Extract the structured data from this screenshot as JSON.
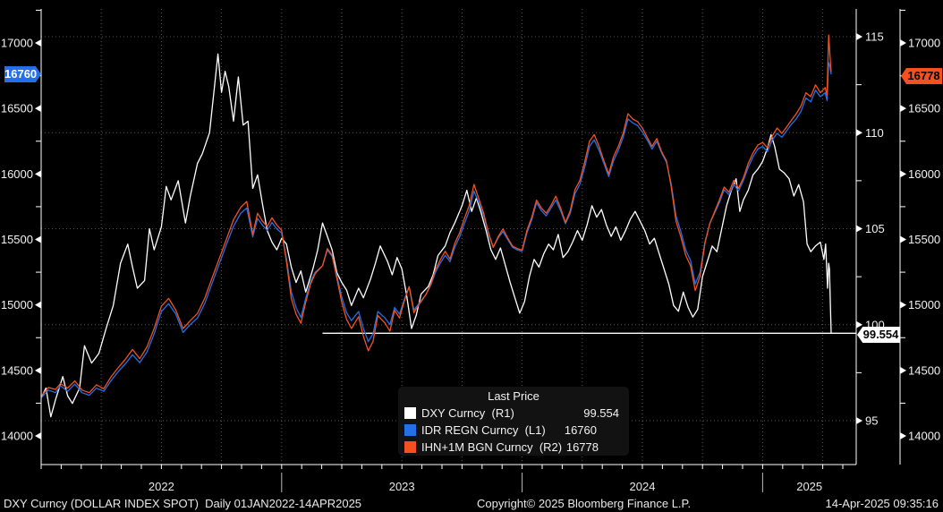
{
  "chart_data": {
    "type": "line",
    "x_axis": {
      "start_year": 2022,
      "end_year_fraction": 2025.39,
      "year_labels": [
        "2022",
        "2023",
        "2024",
        "2025"
      ],
      "minor_tick": "monthly",
      "gridlines": "quarterly-dotted"
    },
    "axes": {
      "left_l1": {
        "min": 14000,
        "max": 17000,
        "step": 500,
        "minor_step": 250
      },
      "right_r1": {
        "min": 95,
        "max": 115,
        "step": 5,
        "minor_step": 2.5
      },
      "right_r2": {
        "min": 14000,
        "max": 17000,
        "step": 500,
        "minor_step": 250
      }
    },
    "colors": {
      "dxy": "#FFFFFF",
      "idr": "#2470E8",
      "ihn": "#F4511E",
      "grid": "#5a5a5a",
      "axis": "#FFFFFF",
      "label": "#F2F2F2"
    },
    "last_price_line": {
      "value": 99.554,
      "from_x": 2023.17
    },
    "badges": {
      "left_blue": "16760",
      "right_orange": "16778",
      "right_white": "99.554"
    },
    "legend": {
      "title": "Last Price",
      "rows": [
        {
          "label": "DXY Curncy  (R1)",
          "value": "99.554",
          "color": "#FFFFFF"
        },
        {
          "label": "IDR REGN Curncy  (L1)",
          "value": "16760",
          "color": "#2470E8"
        },
        {
          "label": "IHN+1M BGN Curncy  (R2)",
          "value": "16778",
          "color": "#F4511E"
        }
      ]
    },
    "series": [
      {
        "name": "DXY Curncy",
        "axis": "R1",
        "color": "#FFFFFF",
        "last": 99.554,
        "x": [
          2022.0,
          2022.02,
          2022.04,
          2022.06,
          2022.09,
          2022.11,
          2022.13,
          2022.16,
          2022.18,
          2022.21,
          2022.24,
          2022.27,
          2022.3,
          2022.33,
          2022.36,
          2022.38,
          2022.4,
          2022.43,
          2022.45,
          2022.47,
          2022.5,
          2022.52,
          2022.54,
          2022.57,
          2022.6,
          2022.62,
          2022.65,
          2022.67,
          2022.7,
          2022.72,
          2022.735,
          2022.75,
          2022.765,
          2022.78,
          2022.8,
          2022.82,
          2022.84,
          2022.86,
          2022.88,
          2022.9,
          2022.92,
          2022.94,
          2022.96,
          2022.98,
          2023.0,
          2023.02,
          2023.04,
          2023.06,
          2023.08,
          2023.1,
          2023.13,
          2023.15,
          2023.17,
          2023.19,
          2023.21,
          2023.23,
          2023.25,
          2023.27,
          2023.29,
          2023.32,
          2023.34,
          2023.37,
          2023.39,
          2023.41,
          2023.44,
          2023.46,
          2023.48,
          2023.5,
          2023.52,
          2023.54,
          2023.56,
          2023.58,
          2023.61,
          2023.63,
          2023.65,
          2023.68,
          2023.7,
          2023.72,
          2023.75,
          2023.77,
          2023.79,
          2023.81,
          2023.83,
          2023.85,
          2023.87,
          2023.89,
          2023.91,
          2023.93,
          2023.95,
          2023.97,
          2023.99,
          2024.01,
          2024.03,
          2024.05,
          2024.07,
          2024.09,
          2024.11,
          2024.13,
          2024.15,
          2024.17,
          2024.19,
          2024.21,
          2024.23,
          2024.25,
          2024.27,
          2024.29,
          2024.31,
          2024.33,
          2024.35,
          2024.37,
          2024.39,
          2024.41,
          2024.43,
          2024.45,
          2024.47,
          2024.49,
          2024.51,
          2024.53,
          2024.55,
          2024.57,
          2024.59,
          2024.61,
          2024.63,
          2024.65,
          2024.67,
          2024.69,
          2024.71,
          2024.73,
          2024.75,
          2024.77,
          2024.79,
          2024.81,
          2024.83,
          2024.85,
          2024.87,
          2024.89,
          2024.905,
          2024.92,
          2024.94,
          2024.96,
          2024.98,
          2025.0,
          2025.02,
          2025.035,
          2025.05,
          2025.07,
          2025.09,
          2025.11,
          2025.13,
          2025.15,
          2025.17,
          2025.185,
          2025.2,
          2025.22,
          2025.24,
          2025.255,
          2025.262,
          2025.27,
          2025.2745,
          2025.278,
          2025.282,
          2025.285
        ],
        "values": [
          96.2,
          96.7,
          95.2,
          96.1,
          97.3,
          96.3,
          95.9,
          96.7,
          98.9,
          98.0,
          98.5,
          99.8,
          101.0,
          103.2,
          104.2,
          103.0,
          101.9,
          102.3,
          105.0,
          103.9,
          105.1,
          107.2,
          106.5,
          107.5,
          105.3,
          106.7,
          108.4,
          108.9,
          110.0,
          112.3,
          114.1,
          112.1,
          113.2,
          112.4,
          110.6,
          112.9,
          110.4,
          110.6,
          107.1,
          107.8,
          106.3,
          104.9,
          104.3,
          103.9,
          104.5,
          104.2,
          103.0,
          102.2,
          102.8,
          101.7,
          102.9,
          103.9,
          105.3,
          104.6,
          103.9,
          102.7,
          102.2,
          101.8,
          101.0,
          101.9,
          101.4,
          102.4,
          103.2,
          104.1,
          103.3,
          102.6,
          103.5,
          102.9,
          101.5,
          99.8,
          100.5,
          101.6,
          102.0,
          102.6,
          103.6,
          104.1,
          104.8,
          105.3,
          106.2,
          107.0,
          105.9,
          106.6,
          105.8,
          104.9,
          103.9,
          103.4,
          104.0,
          103.1,
          102.2,
          101.4,
          100.6,
          101.2,
          102.5,
          103.4,
          103.0,
          103.7,
          104.2,
          103.9,
          104.7,
          103.5,
          103.8,
          104.3,
          104.9,
          104.4,
          105.2,
          106.2,
          105.6,
          106.0,
          105.2,
          104.6,
          105.1,
          104.4,
          104.9,
          105.5,
          105.9,
          105.4,
          104.9,
          104.2,
          104.5,
          103.7,
          102.9,
          102.1,
          101.0,
          100.7,
          101.7,
          100.9,
          100.4,
          100.8,
          102.5,
          103.3,
          104.1,
          103.8,
          105.0,
          106.2,
          107.0,
          107.6,
          105.9,
          106.5,
          107.0,
          107.8,
          108.1,
          108.5,
          109.2,
          109.9,
          109.3,
          108.1,
          107.9,
          107.6,
          106.7,
          107.3,
          106.4,
          104.2,
          103.8,
          104.1,
          104.3,
          103.4,
          104.2,
          101.9,
          103.2,
          102.9,
          100.9,
          99.554
        ]
      },
      {
        "name": "IDR REGN Curncy",
        "axis": "L1",
        "color": "#2470E8",
        "last": 16760,
        "x": [
          2022.0,
          2022.03,
          2022.06,
          2022.08,
          2022.11,
          2022.14,
          2022.17,
          2022.2,
          2022.23,
          2022.26,
          2022.29,
          2022.32,
          2022.35,
          2022.38,
          2022.41,
          2022.44,
          2022.47,
          2022.5,
          2022.53,
          2022.56,
          2022.59,
          2022.62,
          2022.65,
          2022.68,
          2022.71,
          2022.74,
          2022.77,
          2022.8,
          2022.83,
          2022.855,
          2022.88,
          2022.9,
          2022.92,
          2022.94,
          2022.96,
          2022.98,
          2023.0,
          2023.02,
          2023.04,
          2023.06,
          2023.08,
          2023.1,
          2023.12,
          2023.14,
          2023.17,
          2023.19,
          2023.21,
          2023.23,
          2023.25,
          2023.27,
          2023.29,
          2023.32,
          2023.34,
          2023.36,
          2023.38,
          2023.4,
          2023.43,
          2023.45,
          2023.47,
          2023.49,
          2023.51,
          2023.53,
          2023.55,
          2023.57,
          2023.6,
          2023.62,
          2023.64,
          2023.66,
          2023.68,
          2023.7,
          2023.72,
          2023.74,
          2023.76,
          2023.78,
          2023.8,
          2023.82,
          2023.84,
          2023.86,
          2023.88,
          2023.9,
          2023.92,
          2023.94,
          2023.96,
          2023.98,
          2024.0,
          2024.02,
          2024.04,
          2024.06,
          2024.08,
          2024.1,
          2024.12,
          2024.14,
          2024.16,
          2024.18,
          2024.2,
          2024.22,
          2024.24,
          2024.26,
          2024.28,
          2024.3,
          2024.32,
          2024.34,
          2024.36,
          2024.38,
          2024.4,
          2024.42,
          2024.44,
          2024.46,
          2024.48,
          2024.5,
          2024.52,
          2024.54,
          2024.56,
          2024.58,
          2024.6,
          2024.62,
          2024.64,
          2024.66,
          2024.68,
          2024.7,
          2024.72,
          2024.74,
          2024.76,
          2024.78,
          2024.8,
          2024.82,
          2024.84,
          2024.86,
          2024.88,
          2024.9,
          2024.92,
          2024.94,
          2024.96,
          2024.98,
          2025.0,
          2025.02,
          2025.04,
          2025.06,
          2025.08,
          2025.1,
          2025.12,
          2025.14,
          2025.16,
          2025.18,
          2025.2,
          2025.22,
          2025.24,
          2025.26,
          2025.268,
          2025.2745,
          2025.28,
          2025.285
        ],
        "values": [
          14290,
          14350,
          14330,
          14385,
          14340,
          14395,
          14330,
          14310,
          14365,
          14340,
          14420,
          14490,
          14550,
          14620,
          14560,
          14640,
          14780,
          14950,
          15010,
          14930,
          14790,
          14850,
          14900,
          15010,
          15160,
          15310,
          15460,
          15600,
          15700,
          15740,
          15520,
          15660,
          15610,
          15570,
          15630,
          15580,
          15550,
          15350,
          15100,
          14980,
          14905,
          15050,
          15180,
          15250,
          15300,
          15420,
          15370,
          15220,
          15060,
          14940,
          14880,
          14950,
          14820,
          14720,
          14780,
          14950,
          14900,
          14850,
          14980,
          14930,
          15040,
          15140,
          14960,
          15010,
          15080,
          15150,
          15250,
          15320,
          15380,
          15330,
          15440,
          15520,
          15620,
          15720,
          15870,
          15780,
          15680,
          15540,
          15440,
          15510,
          15560,
          15500,
          15440,
          15420,
          15410,
          15550,
          15650,
          15780,
          15720,
          15680,
          15740,
          15800,
          15720,
          15620,
          15700,
          15850,
          15920,
          16050,
          16210,
          16260,
          16180,
          16080,
          15980,
          16100,
          16180,
          16280,
          16420,
          16390,
          16370,
          16320,
          16260,
          16190,
          16250,
          16160,
          16090,
          15920,
          15680,
          15560,
          15420,
          15340,
          15160,
          15250,
          15480,
          15620,
          15700,
          15780,
          15880,
          15840,
          15920,
          15870,
          15950,
          16050,
          16130,
          16190,
          16210,
          16170,
          16260,
          16310,
          16280,
          16330,
          16380,
          16420,
          16480,
          16580,
          16550,
          16640,
          16590,
          16620,
          16560,
          16850,
          16820,
          16760
        ]
      },
      {
        "name": "IHN+1M BGN Curncy",
        "axis": "L1",
        "color": "#F4511E",
        "last": 16778,
        "x": [
          2022.0,
          2022.03,
          2022.06,
          2022.08,
          2022.11,
          2022.14,
          2022.17,
          2022.2,
          2022.23,
          2022.26,
          2022.29,
          2022.32,
          2022.35,
          2022.38,
          2022.41,
          2022.44,
          2022.47,
          2022.5,
          2022.53,
          2022.56,
          2022.59,
          2022.62,
          2022.65,
          2022.68,
          2022.71,
          2022.74,
          2022.77,
          2022.8,
          2022.83,
          2022.855,
          2022.88,
          2022.9,
          2022.92,
          2022.94,
          2022.96,
          2022.98,
          2023.0,
          2023.02,
          2023.04,
          2023.06,
          2023.08,
          2023.1,
          2023.12,
          2023.14,
          2023.17,
          2023.19,
          2023.21,
          2023.23,
          2023.25,
          2023.27,
          2023.29,
          2023.32,
          2023.34,
          2023.36,
          2023.38,
          2023.4,
          2023.43,
          2023.45,
          2023.47,
          2023.49,
          2023.51,
          2023.53,
          2023.55,
          2023.57,
          2023.6,
          2023.62,
          2023.64,
          2023.66,
          2023.68,
          2023.7,
          2023.72,
          2023.74,
          2023.76,
          2023.78,
          2023.8,
          2023.82,
          2023.84,
          2023.86,
          2023.88,
          2023.9,
          2023.92,
          2023.94,
          2023.96,
          2023.98,
          2024.0,
          2024.02,
          2024.04,
          2024.06,
          2024.08,
          2024.1,
          2024.12,
          2024.14,
          2024.16,
          2024.18,
          2024.2,
          2024.22,
          2024.24,
          2024.26,
          2024.28,
          2024.3,
          2024.32,
          2024.34,
          2024.36,
          2024.38,
          2024.4,
          2024.42,
          2024.44,
          2024.46,
          2024.48,
          2024.5,
          2024.52,
          2024.54,
          2024.56,
          2024.58,
          2024.6,
          2024.62,
          2024.64,
          2024.66,
          2024.68,
          2024.7,
          2024.72,
          2024.74,
          2024.76,
          2024.78,
          2024.8,
          2024.82,
          2024.84,
          2024.86,
          2024.88,
          2024.9,
          2024.92,
          2024.94,
          2024.96,
          2024.98,
          2025.0,
          2025.02,
          2025.04,
          2025.06,
          2025.08,
          2025.1,
          2025.12,
          2025.14,
          2025.16,
          2025.18,
          2025.2,
          2025.22,
          2025.24,
          2025.26,
          2025.268,
          2025.2745,
          2025.28,
          2025.285
        ],
        "values": [
          14305,
          14370,
          14355,
          14400,
          14365,
          14420,
          14350,
          14330,
          14390,
          14360,
          14450,
          14520,
          14585,
          14660,
          14590,
          14680,
          14820,
          14990,
          15050,
          14960,
          14820,
          14880,
          14935,
          15050,
          15200,
          15350,
          15500,
          15650,
          15745,
          15790,
          15540,
          15700,
          15640,
          15600,
          15665,
          15610,
          15570,
          15330,
          15050,
          14930,
          14860,
          15020,
          15160,
          15240,
          15300,
          15430,
          15380,
          15200,
          15020,
          14890,
          14820,
          14910,
          14760,
          14650,
          14720,
          14920,
          14860,
          14800,
          14960,
          14900,
          15030,
          15140,
          14940,
          15000,
          15080,
          15160,
          15270,
          15345,
          15410,
          15350,
          15470,
          15550,
          15660,
          15760,
          15920,
          15810,
          15700,
          15550,
          15440,
          15520,
          15580,
          15510,
          15450,
          15430,
          15420,
          15570,
          15670,
          15800,
          15740,
          15700,
          15760,
          15830,
          15740,
          15630,
          15720,
          15880,
          15950,
          16090,
          16250,
          16300,
          16210,
          16100,
          16000,
          16130,
          16210,
          16310,
          16460,
          16420,
          16400,
          16350,
          16280,
          16210,
          16270,
          16170,
          16100,
          15900,
          15640,
          15520,
          15380,
          15300,
          15110,
          15220,
          15470,
          15620,
          15710,
          15800,
          15900,
          15860,
          15950,
          15890,
          15970,
          16080,
          16160,
          16220,
          16240,
          16200,
          16290,
          16350,
          16310,
          16360,
          16410,
          16460,
          16520,
          16620,
          16590,
          16680,
          16620,
          16660,
          16600,
          17060,
          16900,
          16778
        ]
      }
    ]
  },
  "footer": {
    "left": "DXY Curncy (DOLLAR INDEX SPOT)  Daily 01JAN2022-14APR2025",
    "center": "Copyright© 2025 Bloomberg Finance L.P.",
    "right": "14-Apr-2025 09:35:16"
  }
}
